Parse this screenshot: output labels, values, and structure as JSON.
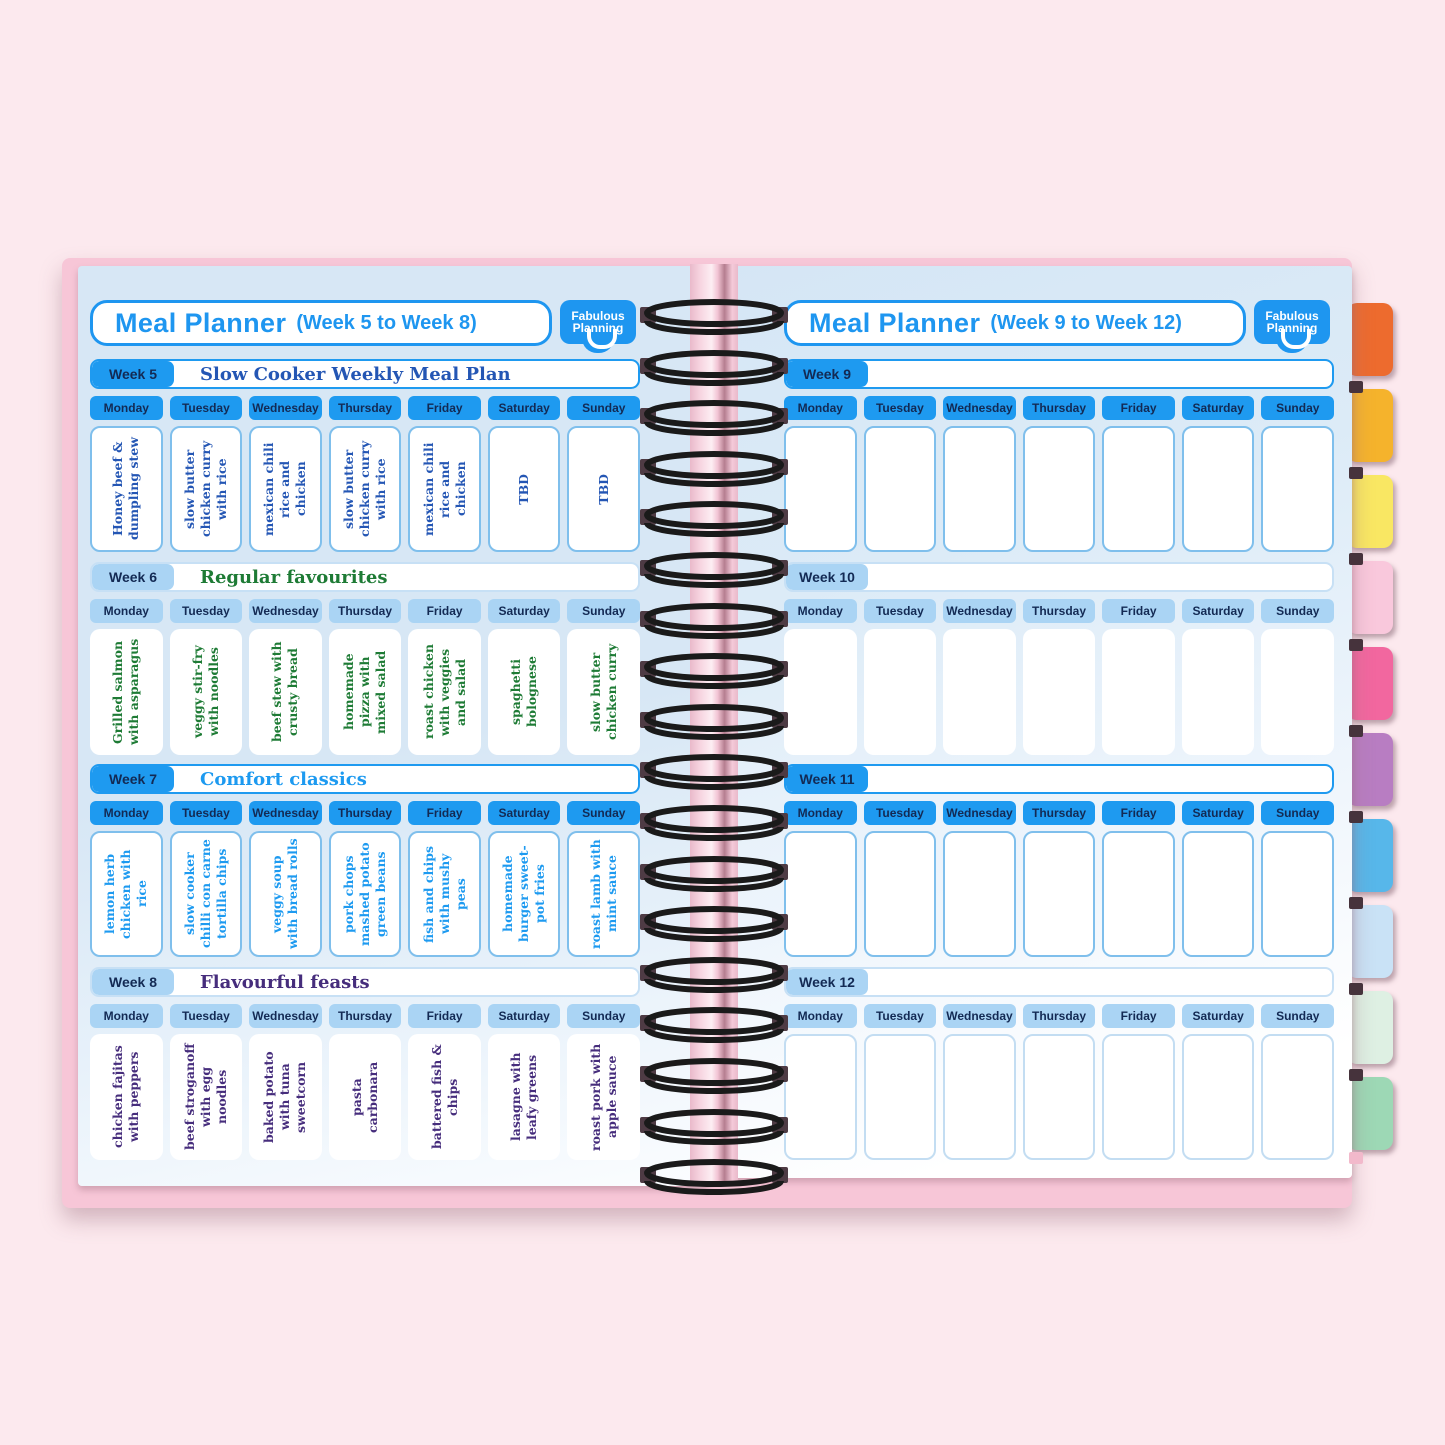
{
  "brand": {
    "logo_line1": "Fabulous",
    "logo_line2": "Planning"
  },
  "days": [
    "Monday",
    "Tuesday",
    "Wednesday",
    "Thursday",
    "Friday",
    "Saturday",
    "Sunday"
  ],
  "pages": [
    {
      "side": "left",
      "title": "Meal Planner",
      "subtitle": "(Week 5 to Week 8)",
      "weeks": [
        {
          "label": "Week 5",
          "theme": "Slow Cooker Weekly Meal Plan",
          "variant": "bright",
          "cells": "bordered",
          "ink": "#2456b4",
          "meals": [
            "Honey beef & dumpling stew",
            "slow butter chicken curry with rice",
            "mexican chili rice and chicken",
            "slow butter chicken curry with rice",
            "mexican chili rice and chicken",
            "TBD",
            "TBD"
          ]
        },
        {
          "label": "Week 6",
          "theme": "Regular favourites",
          "variant": "light",
          "cells": "plain",
          "ink": "#1e7b35",
          "meals": [
            "Grilled salmon with asparagus",
            "veggy stir-fry with noodles",
            "beef stew with crusty bread",
            "homemade pizza with mixed salad",
            "roast chicken with veggies and salad",
            "spaghetti bolognese",
            "slow butter chicken curry"
          ]
        },
        {
          "label": "Week 7",
          "theme": "Comfort classics",
          "variant": "bright",
          "cells": "bordered",
          "ink": "#1d9af0",
          "meals": [
            "lemon herb chicken with rice",
            "slow cooker chilli con carne tortilla chips",
            "veggy soup with bread rolls",
            "pork chops mashed potato green beans",
            "fish and chips with mushy peas",
            "homemade burger sweet-pot fries",
            "roast lamb with mint sauce"
          ]
        },
        {
          "label": "Week 8",
          "theme": "Flavourful feasts",
          "variant": "light",
          "cells": "plain",
          "ink": "#462d7c",
          "meals": [
            "chicken fajitas with peppers",
            "beef stroganoff with egg noodles",
            "baked potato with tuna sweetcorn",
            "pasta carbonara",
            "battered fish & chips",
            "lasagne with leafy greens",
            "roast pork with apple sauce"
          ]
        }
      ]
    },
    {
      "side": "right",
      "title": "Meal Planner",
      "subtitle": "(Week 9 to Week 12)",
      "weeks": [
        {
          "label": "Week 9",
          "theme": "",
          "variant": "bright",
          "cells": "bordered",
          "ink": "#2456b4",
          "meals": [
            "",
            "",
            "",
            "",
            "",
            "",
            ""
          ]
        },
        {
          "label": "Week 10",
          "theme": "",
          "variant": "light",
          "cells": "plain",
          "ink": "#2456b4",
          "meals": [
            "",
            "",
            "",
            "",
            "",
            "",
            ""
          ]
        },
        {
          "label": "Week 11",
          "theme": "",
          "variant": "bright",
          "cells": "bordered",
          "ink": "#2456b4",
          "meals": [
            "",
            "",
            "",
            "",
            "",
            "",
            ""
          ]
        },
        {
          "label": "Week 12",
          "theme": "",
          "variant": "light",
          "cells": "faint",
          "ink": "#2456b4",
          "meals": [
            "",
            "",
            "",
            "",
            "",
            "",
            ""
          ]
        }
      ]
    }
  ],
  "tabs": [
    {
      "name": "tab-orange",
      "color": "#ed6b2e"
    },
    {
      "name": "tab-amber",
      "color": "#f5b32c"
    },
    {
      "name": "tab-yellow",
      "color": "#f9e763"
    },
    {
      "name": "tab-light-pink",
      "color": "#f9c8dc"
    },
    {
      "name": "tab-hot-pink",
      "color": "#f2679f"
    },
    {
      "name": "tab-purple",
      "color": "#b87dc2"
    },
    {
      "name": "tab-blue",
      "color": "#57b7ea"
    },
    {
      "name": "tab-pale-blue",
      "color": "#c9e2f6"
    },
    {
      "name": "tab-pale-green",
      "color": "#def0e3"
    },
    {
      "name": "tab-green",
      "color": "#9dd8b5"
    }
  ],
  "palette": {
    "background_pink": "#fce9ee",
    "cover_pink": "#f7c6d7",
    "page_blue": "#d7e7f5",
    "bright_blue": "#1e9af0",
    "light_blue": "#aad4f4",
    "navy_text": "#132a54",
    "title_blue": "#1e96f0",
    "cell_border_blue": "#7fbfec",
    "coil_black": "#1a1a1a"
  }
}
